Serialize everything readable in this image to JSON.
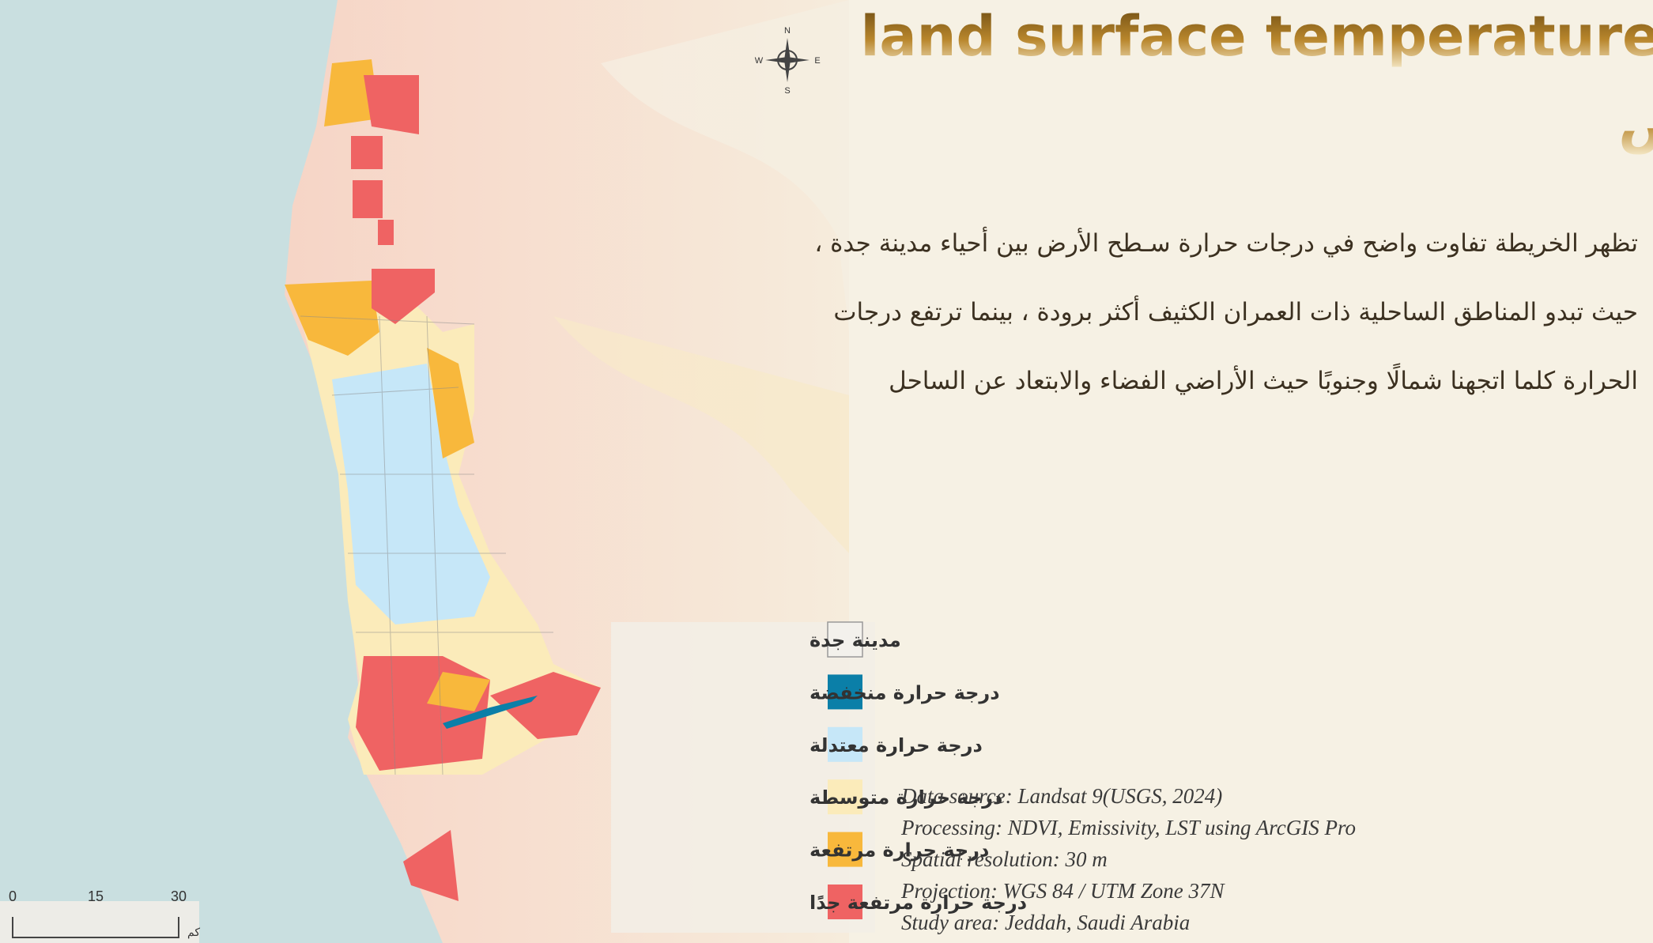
{
  "title": "land surface temperature",
  "subtitle": "درجة حرارة سطح الأرض",
  "description": [
    "تظهر الخريطة تفاوت واضح في درجات  حرارة سـطح الأرض بين أحياء مدينة جدة ،",
    "حيث تبدو المناطق الساحلية ذات العمران الكثيف أكثر برودة ، بينما ترتفع درجات",
    "الحرارة كلما اتجهنا شمالًا وجنوبًا حيث الأراضي الفضاء والابتعاد عن الساحل"
  ],
  "legend": [
    {
      "label": "مدينة جدة",
      "color": "#f3f1ec"
    },
    {
      "label": "درجة حرارة منخفضة",
      "color": "#0b7fa8"
    },
    {
      "label": "درجة حرارة معتدلة",
      "color": "#c6e7f8"
    },
    {
      "label": "درجة حرارة متوسطة",
      "color": "#fbebba"
    },
    {
      "label": "درجة حرارة مرتفعة",
      "color": "#f8b83c"
    },
    {
      "label": "درجة حرارة مرتفعة جدًا",
      "color": "#ef6363"
    }
  ],
  "metadata": [
    "Data source: Landsat 9(USGS, 2024)",
    "Processing: NDVI, Emissivity, LST using ArcGIS Pro",
    "Spatial resolution: 30 m",
    "Projection: WGS 84 / UTM Zone 37N",
    "Study area: Jeddah, Saudi Arabia"
  ],
  "scale_bar": {
    "labels": [
      "0",
      "15",
      "30"
    ],
    "unit": "كم"
  },
  "compass": {
    "north": "N",
    "east": "E",
    "south": "S",
    "west": "W"
  }
}
